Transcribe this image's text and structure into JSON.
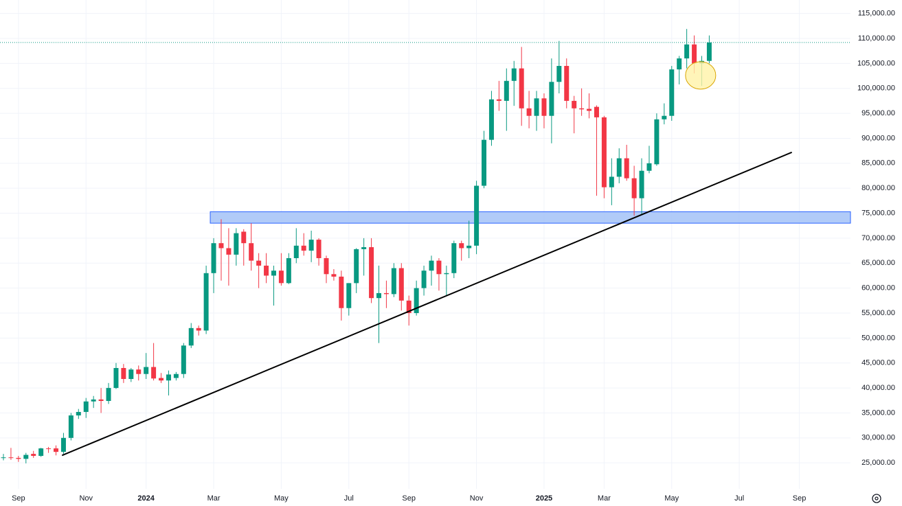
{
  "chart_data": {
    "type": "candlestick",
    "up_color": "#089981",
    "down_color": "#f23645",
    "grid": true,
    "categories": [
      null,
      null,
      "Sep",
      null,
      null,
      null,
      null,
      null,
      null,
      null,
      null,
      "Nov",
      null,
      null,
      null,
      null,
      null,
      null,
      null,
      "2024",
      null,
      null,
      null,
      null,
      null,
      null,
      null,
      null,
      "Mar",
      null,
      null,
      null,
      null,
      null,
      null,
      null,
      null,
      "May",
      null,
      null,
      null,
      null,
      null,
      null,
      null,
      null,
      "Jul",
      null,
      null,
      null,
      null,
      null,
      null,
      null,
      "Sep",
      null,
      null,
      null,
      null,
      null,
      null,
      null,
      null,
      "Nov",
      null,
      null,
      null,
      null,
      null,
      null,
      null,
      null,
      "2025",
      null,
      null,
      null,
      null,
      null,
      null,
      null,
      "Mar",
      null,
      null,
      null,
      null,
      null,
      null,
      null,
      null,
      "May",
      null,
      null,
      null,
      null,
      null,
      null,
      null,
      null,
      "Jul",
      null,
      null,
      null,
      null,
      null,
      null,
      null,
      "Sep"
    ],
    "open": [
      26000,
      26100,
      26000,
      25800,
      26800,
      26400,
      27900,
      27900,
      27200,
      30000,
      34500,
      35200,
      37300,
      37700,
      37400,
      40000,
      44000,
      41800,
      43700,
      42800,
      44200,
      42000,
      41500,
      42000,
      42800,
      48500,
      52000,
      51500,
      63000,
      69000,
      68000,
      66700,
      71300,
      69000,
      65500,
      64500,
      62500,
      63500,
      61000,
      66000,
      68500,
      67500,
      69700,
      66000,
      62800,
      62300,
      56000,
      61000,
      67800,
      68200,
      58000,
      59000,
      58800,
      64000,
      57500,
      55000,
      60000,
      63500,
      65500,
      62800,
      63000,
      69000,
      68000,
      68500,
      80500,
      89700,
      97800,
      97500,
      101500,
      104000,
      96000,
      94500,
      98000,
      94500,
      101300,
      104500,
      97500,
      96000,
      95900,
      96300,
      94200,
      80200,
      82300,
      86000,
      82000,
      78000,
      83500,
      84800,
      93800,
      94500,
      103800,
      106000,
      108800,
      105000,
      105500,
      null,
      null,
      null,
      null,
      null,
      null,
      null,
      null,
      null,
      null,
      null,
      null
    ],
    "high": [
      26800,
      28000,
      26400,
      27000,
      27400,
      28000,
      28200,
      28500,
      31000,
      35000,
      35800,
      38000,
      38400,
      40000,
      41000,
      45000,
      44800,
      44000,
      44500,
      47000,
      49000,
      43000,
      43500,
      43200,
      49000,
      53000,
      52500,
      64500,
      70000,
      73800,
      72000,
      72000,
      71800,
      73000,
      67000,
      67000,
      64500,
      67000,
      67000,
      72000,
      71000,
      71500,
      70000,
      66500,
      63800,
      63500,
      61000,
      68000,
      70000,
      70000,
      64500,
      61500,
      65000,
      65000,
      58500,
      61500,
      64500,
      66500,
      66000,
      64500,
      69500,
      69500,
      73500,
      81500,
      91500,
      99500,
      101500,
      104000,
      105500,
      108300,
      99500,
      99500,
      99000,
      106000,
      109500,
      106000,
      98500,
      100000,
      99000,
      96600,
      94500,
      86000,
      88000,
      88700,
      84500,
      86000,
      88500,
      95000,
      97000,
      104500,
      106500,
      111900,
      110600,
      106500,
      110600,
      null,
      null,
      null,
      null,
      null,
      null,
      null,
      null,
      null,
      null,
      null,
      null
    ],
    "low": [
      25500,
      25600,
      25200,
      24900,
      26000,
      26200,
      27000,
      26500,
      26800,
      29500,
      33800,
      34000,
      36000,
      35000,
      36800,
      39800,
      41000,
      41200,
      41500,
      41800,
      41500,
      41000,
      38500,
      41500,
      42000,
      48000,
      50500,
      50800,
      59000,
      61500,
      60500,
      64500,
      64500,
      63500,
      60000,
      61000,
      56500,
      60500,
      60800,
      65000,
      66500,
      65200,
      64500,
      61000,
      61500,
      53500,
      54500,
      59000,
      62500,
      57000,
      49000,
      56000,
      58200,
      55500,
      52500,
      54500,
      58500,
      60500,
      59500,
      58500,
      62000,
      65500,
      66000,
      66800,
      80000,
      88500,
      95500,
      91500,
      96500,
      92500,
      92000,
      91500,
      92000,
      89000,
      99000,
      96000,
      91000,
      94500,
      94000,
      78500,
      78000,
      76600,
      81000,
      81500,
      74500,
      74600,
      83000,
      84500,
      92800,
      93500,
      100800,
      104000,
      103000,
      100500,
      105000,
      null,
      null,
      null,
      null,
      null,
      null,
      null,
      null,
      null,
      null,
      null,
      null
    ],
    "close": [
      26100,
      26000,
      25800,
      26600,
      26400,
      27900,
      27800,
      27200,
      30000,
      34500,
      35200,
      37300,
      37700,
      37400,
      40000,
      44000,
      41800,
      43700,
      42800,
      44200,
      41900,
      41500,
      42700,
      42800,
      48500,
      52000,
      51500,
      63000,
      69000,
      68000,
      66700,
      71000,
      69000,
      65500,
      64500,
      62500,
      63500,
      61000,
      66000,
      68500,
      67500,
      69700,
      66000,
      62800,
      62300,
      56000,
      61000,
      67800,
      68200,
      58000,
      59000,
      58800,
      64000,
      57500,
      55000,
      60000,
      63500,
      65500,
      62800,
      63000,
      69000,
      68000,
      68500,
      80500,
      89700,
      97800,
      97500,
      101500,
      104000,
      96000,
      94500,
      98000,
      94500,
      101300,
      104500,
      97500,
      96000,
      95800,
      95500,
      94200,
      80200,
      82300,
      86000,
      82000,
      78000,
      83500,
      85000,
      93800,
      94500,
      103800,
      106000,
      108800,
      105000,
      105500,
      109200,
      null,
      null,
      null,
      null,
      null,
      null,
      null,
      null,
      null,
      null,
      null,
      null
    ],
    "ylim": [
      19800,
      117700
    ],
    "yticks": [
      {
        "value": 25000,
        "label": "25,000.00"
      },
      {
        "value": 30000,
        "label": "30,000.00"
      },
      {
        "value": 35000,
        "label": "35,000.00"
      },
      {
        "value": 40000,
        "label": "40,000.00"
      },
      {
        "value": 45000,
        "label": "45,000.00"
      },
      {
        "value": 50000,
        "label": "50,000.00"
      },
      {
        "value": 55000,
        "label": "55,000.00"
      },
      {
        "value": 60000,
        "label": "60,000.00"
      },
      {
        "value": 65000,
        "label": "65,000.00"
      },
      {
        "value": 70000,
        "label": "70,000.00"
      },
      {
        "value": 75000,
        "label": "75,000.00"
      },
      {
        "value": 80000,
        "label": "80,000.00"
      },
      {
        "value": 85000,
        "label": "85,000.00"
      },
      {
        "value": 90000,
        "label": "90,000.00"
      },
      {
        "value": 95000,
        "label": "95,000.00"
      },
      {
        "value": 100000,
        "label": "100,000.00"
      },
      {
        "value": 105000,
        "label": "105,000.00"
      },
      {
        "value": 110000,
        "label": "110,000.00"
      },
      {
        "value": 115000,
        "label": "115,000.00"
      }
    ],
    "zone": {
      "values": [
        73000,
        75300
      ],
      "color": "#a8c5f7"
    },
    "trendline": {
      "values": [
        26500,
        87200
      ],
      "color": "#000000"
    },
    "highlight": {
      "value": 102600,
      "color": "#fff2a8"
    }
  }
}
